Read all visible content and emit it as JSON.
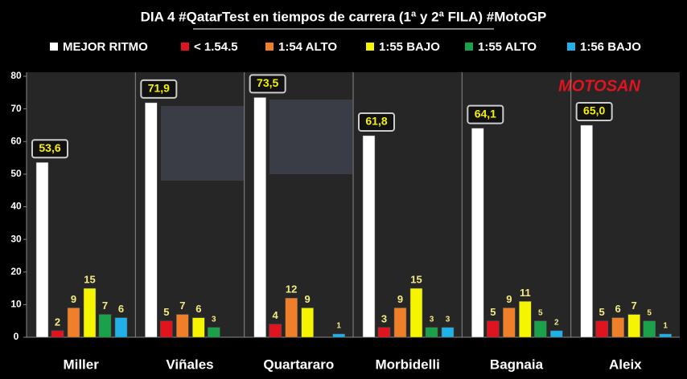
{
  "chart_data": {
    "type": "bar",
    "title": "DIA 4 #QatarTest en tiempos de carrera (1ª y 2ª FILA) #MotoGP",
    "logo": "MOTOSAN",
    "categories": [
      "Miller",
      "Viñales",
      "Quartararo",
      "Morbidelli",
      "Bagnaia",
      "Aleix"
    ],
    "series": [
      {
        "name": "MEJOR RITMO",
        "color": "#ffffff",
        "values": [
          53.6,
          71.9,
          73.5,
          61.8,
          64.1,
          65.0
        ],
        "value_labels": [
          "53,6",
          "71,9",
          "73,5",
          "61,8",
          "64,1",
          "65,0"
        ]
      },
      {
        "name": "< 1.54.5",
        "color": "#e0141e",
        "values": [
          2,
          5,
          4,
          3,
          5,
          5
        ]
      },
      {
        "name": "1:54 ALTO",
        "color": "#f07f2a",
        "values": [
          9,
          7,
          12,
          9,
          9,
          6
        ]
      },
      {
        "name": "1:55 BAJO",
        "color": "#f5f500",
        "values": [
          15,
          6,
          9,
          15,
          11,
          7
        ]
      },
      {
        "name": "1:55 ALTO",
        "color": "#1aa14a",
        "values": [
          7,
          3,
          null,
          3,
          5,
          5
        ]
      },
      {
        "name": "1:56 BAJO",
        "color": "#22b0e8",
        "values": [
          6,
          null,
          1,
          3,
          2,
          1
        ]
      }
    ],
    "ylim": [
      0,
      80
    ],
    "yticks": [
      0,
      10,
      20,
      30,
      40,
      50,
      60,
      70,
      80
    ],
    "grid": false
  }
}
